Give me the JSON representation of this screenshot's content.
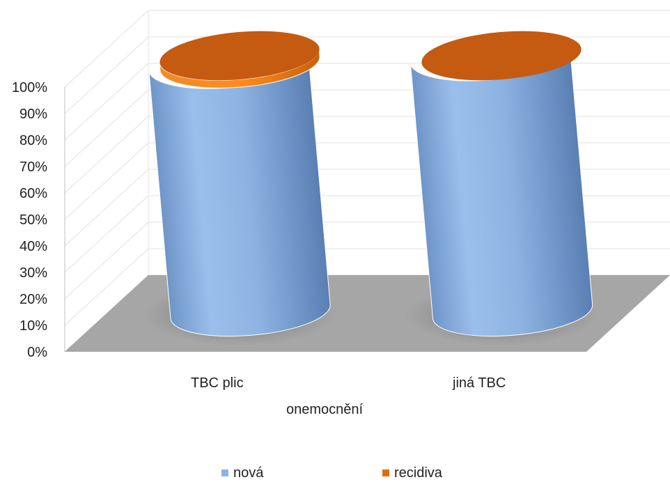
{
  "chart_data": {
    "type": "bar",
    "stacked": "percent",
    "style": "3d-cylinder",
    "categories": [
      "TBC plic",
      "jiná TBC"
    ],
    "series": [
      {
        "name": "nová",
        "values": [
          97,
          100
        ],
        "color": "#8db3e2"
      },
      {
        "name": "recidiva",
        "values": [
          3,
          0
        ],
        "color": "#e36c0a"
      }
    ],
    "title": "",
    "xlabel": "onemocnění",
    "ylabel": "",
    "ylim": [
      0,
      100
    ],
    "yticks": [
      "0%",
      "10%",
      "20%",
      "30%",
      "40%",
      "50%",
      "60%",
      "70%",
      "80%",
      "90%",
      "100%"
    ],
    "grid": true,
    "legend": "bottom",
    "colors": {
      "floor": "#a6a6a6",
      "top_cap": "#c55a11",
      "grid": "#e6e6e6"
    }
  }
}
